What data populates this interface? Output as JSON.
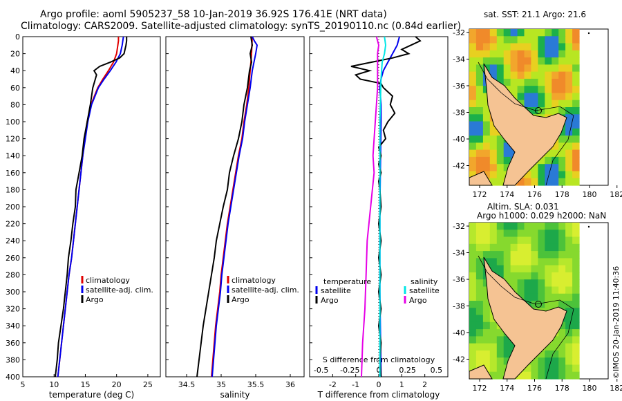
{
  "header": {
    "title_line1": "Argo profile: aoml 5905237_58 10-Jan-2019 36.92S 176.41E (NRT data)",
    "title_line2": "Climatology: CARS2009. Satellite-adjusted climatology: synTS_20190110.nc (0.84d earlier)"
  },
  "stamp": "©IMOS 20-Jan-2019 11:40:36",
  "colors": {
    "climatology": "#e00000",
    "satellite": "#0000ee",
    "argo": "#000000",
    "sat_salinity": "#00e6e6",
    "clim_salinity": "#e600e6"
  },
  "chart_data": [
    {
      "type": "line",
      "xlabel": "temperature (deg C)",
      "ylabel": "",
      "xlim": [
        5,
        27
      ],
      "ylim": [
        400,
        0
      ],
      "xticks": [
        "5",
        "10",
        "15",
        "20",
        "25"
      ],
      "yticks": [
        "0",
        "20",
        "40",
        "60",
        "80",
        "100",
        "120",
        "140",
        "160",
        "180",
        "200",
        "220",
        "240",
        "260",
        "280",
        "300",
        "320",
        "340",
        "360",
        "380",
        "400"
      ],
      "legend": [
        "climatology",
        "satellite-adj. clim.",
        "Argo"
      ],
      "series": [
        {
          "name": "climatology",
          "depth": [
            0,
            5,
            10,
            20,
            30,
            40,
            50,
            60,
            80,
            100,
            120,
            140,
            160,
            180,
            200,
            220,
            240,
            260,
            280,
            300,
            320,
            340,
            360,
            380,
            400
          ],
          "values": [
            20.3,
            20.3,
            20.2,
            20.0,
            19.5,
            18.7,
            17.8,
            17.0,
            15.9,
            15.3,
            14.9,
            14.6,
            14.3,
            14.0,
            13.7,
            13.4,
            13.1,
            12.8,
            12.4,
            12.1,
            11.8,
            11.5,
            11.2,
            10.9,
            10.6
          ]
        },
        {
          "name": "satellite-adj. clim.",
          "depth": [
            0,
            5,
            10,
            20,
            30,
            40,
            50,
            60,
            80,
            100,
            120,
            140,
            160,
            180,
            200,
            220,
            240,
            260,
            280,
            300,
            320,
            340,
            360,
            380,
            400
          ],
          "values": [
            21.1,
            21.0,
            20.9,
            20.6,
            19.9,
            19.0,
            18.0,
            17.1,
            16.0,
            15.4,
            15.0,
            14.6,
            14.3,
            14.0,
            13.7,
            13.4,
            13.1,
            12.8,
            12.4,
            12.1,
            11.8,
            11.5,
            11.2,
            10.9,
            10.6
          ]
        },
        {
          "name": "Argo",
          "depth": [
            0,
            5,
            10,
            20,
            25,
            30,
            35,
            40,
            45,
            50,
            60,
            80,
            100,
            120,
            140,
            160,
            180,
            200,
            220,
            240,
            260,
            280,
            300,
            320,
            340,
            360,
            380,
            400
          ],
          "values": [
            21.6,
            21.6,
            21.5,
            21.2,
            20.5,
            19.0,
            17.3,
            16.4,
            16.8,
            16.6,
            16.2,
            15.8,
            15.3,
            14.8,
            14.5,
            14.0,
            13.5,
            13.4,
            13.0,
            12.7,
            12.3,
            12.1,
            11.8,
            11.5,
            11.1,
            10.7,
            10.5,
            10.2
          ]
        }
      ]
    },
    {
      "type": "line",
      "xlabel": "salinity",
      "xlim": [
        34.2,
        36.2
      ],
      "ylim": [
        400,
        0
      ],
      "xticks": [
        "34.5",
        "35",
        "35.5",
        "36"
      ],
      "legend": [
        "climatology",
        "satellite-adj. clim.",
        "Argo"
      ],
      "series": [
        {
          "name": "climatology",
          "depth": [
            0,
            20,
            40,
            60,
            80,
            100,
            120,
            140,
            160,
            180,
            200,
            220,
            240,
            260,
            280,
            300,
            320,
            340,
            360,
            380,
            400
          ],
          "values": [
            35.45,
            35.44,
            35.42,
            35.4,
            35.37,
            35.33,
            35.3,
            35.25,
            35.21,
            35.17,
            35.13,
            35.09,
            35.06,
            35.03,
            35.0,
            34.98,
            34.95,
            34.92,
            34.9,
            34.88,
            34.86
          ]
        },
        {
          "name": "satellite-adj. clim.",
          "depth": [
            0,
            5,
            10,
            20,
            40,
            60,
            80,
            100,
            120,
            140,
            160,
            180,
            200,
            220,
            240,
            260,
            280,
            300,
            320,
            340,
            360,
            380,
            400
          ],
          "values": [
            35.45,
            35.48,
            35.52,
            35.5,
            35.45,
            35.42,
            35.38,
            35.34,
            35.31,
            35.26,
            35.22,
            35.18,
            35.14,
            35.1,
            35.07,
            35.04,
            35.01,
            34.99,
            34.96,
            34.93,
            34.91,
            34.89,
            34.87
          ]
        },
        {
          "name": "Argo",
          "depth": [
            0,
            10,
            20,
            30,
            40,
            60,
            80,
            100,
            120,
            140,
            160,
            180,
            200,
            220,
            240,
            260,
            280,
            300,
            320,
            340,
            360,
            380,
            400
          ],
          "values": [
            35.43,
            35.45,
            35.42,
            35.44,
            35.41,
            35.38,
            35.33,
            35.3,
            35.25,
            35.18,
            35.12,
            35.09,
            35.03,
            34.98,
            34.93,
            34.9,
            34.86,
            34.82,
            34.78,
            34.74,
            34.71,
            34.68,
            34.65
          ]
        }
      ]
    },
    {
      "type": "line",
      "xlabel": "T difference from climatology",
      "x2label": "S difference from climatology",
      "xlim": [
        -3,
        3
      ],
      "ylim": [
        400,
        0
      ],
      "xticks": [
        "-2",
        "-1",
        "0",
        "1",
        "2"
      ],
      "x2ticks": [
        "-0.5",
        "-0.25",
        "0",
        "0.25",
        "0.5"
      ],
      "legend_left_title": "temperature",
      "legend_right_title": "salinity",
      "legend": [
        "satellite",
        "Argo",
        "satellite",
        "Argo"
      ],
      "series": [
        {
          "name": "T satellite",
          "depth": [
            0,
            10,
            20,
            30,
            40,
            50,
            60,
            80,
            100,
            200,
            300,
            400
          ],
          "values": [
            0.9,
            0.8,
            0.6,
            0.4,
            0.2,
            0.1,
            0.05,
            0.1,
            0.1,
            0.05,
            0.05,
            0.1
          ]
        },
        {
          "name": "T Argo",
          "depth": [
            0,
            5,
            10,
            15,
            20,
            25,
            30,
            35,
            40,
            45,
            50,
            55,
            60,
            70,
            80,
            90,
            100,
            110,
            120,
            130,
            140,
            150,
            160,
            170,
            180,
            200,
            220,
            240,
            260,
            280,
            300,
            320,
            340,
            360,
            380,
            400
          ],
          "values": [
            1.6,
            1.8,
            1.4,
            1.0,
            1.3,
            0.6,
            -0.3,
            -1.2,
            -0.4,
            -1.0,
            -0.8,
            0.1,
            0.2,
            0.6,
            0.5,
            0.7,
            0.4,
            0.2,
            0.3,
            0.0,
            0.1,
            0.0,
            0.1,
            0.0,
            0.05,
            0.1,
            0.0,
            0.1,
            0.0,
            0.1,
            0.0,
            0.1,
            0.0,
            0.1,
            0.05,
            0.1
          ]
        },
        {
          "name": "S satellite",
          "depth": [
            0,
            10,
            20,
            30,
            50,
            100,
            200,
            300,
            400
          ],
          "values": [
            0.05,
            0.06,
            0.05,
            0.03,
            0.02,
            0.01,
            0.01,
            0.01,
            0.01
          ]
        },
        {
          "name": "S Argo",
          "depth": [
            0,
            10,
            20,
            40,
            60,
            80,
            100,
            140,
            160,
            200,
            240,
            280,
            320,
            360,
            400
          ],
          "values": [
            -0.02,
            0.0,
            -0.01,
            -0.01,
            -0.01,
            -0.02,
            -0.03,
            -0.05,
            -0.04,
            -0.07,
            -0.1,
            -0.11,
            -0.12,
            -0.14,
            -0.15
          ]
        }
      ]
    }
  ],
  "maps": [
    {
      "title_line1": "sat. SST: 21.1 Argo: 21.6",
      "title_line2": "",
      "xticks": [
        "172",
        "174",
        "176",
        "178",
        "180",
        "182"
      ],
      "yticks": [
        "-32",
        "-34",
        "-36",
        "-38",
        "-40",
        "-42"
      ]
    },
    {
      "title_line1": "Altim. SLA: 0.031",
      "title_line2": "Argo h1000: 0.029 h2000: NaN",
      "xticks": [
        "172",
        "174",
        "176",
        "178",
        "180",
        "182"
      ],
      "yticks": [
        "-32",
        "-34",
        "-36",
        "-38",
        "-40",
        "-42"
      ]
    }
  ]
}
